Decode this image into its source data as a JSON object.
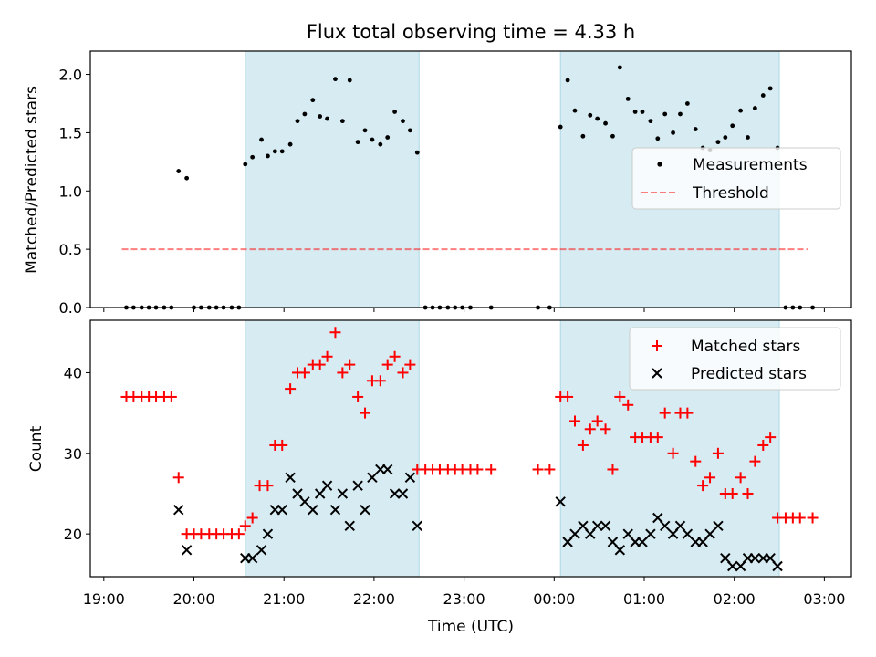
{
  "figure": {
    "title": "Flux total observing time = 4.33 h"
  },
  "colors": {
    "shade": "#add8e6",
    "measurement": "#000000",
    "threshold": "#ff0000",
    "matched": "#ff0000",
    "predicted": "#000000"
  },
  "chart_data": [
    {
      "type": "scatter",
      "panel": "top",
      "title": "Flux total observing time = 4.33 h",
      "xlabel": "",
      "ylabel": "Matched/Predicted stars",
      "x_unit": "hours since 19:00 UTC",
      "xlim": [
        -0.15,
        8.3
      ],
      "ylim": [
        0,
        2.2
      ],
      "yticks": [
        "0.0",
        "0.5",
        "1.0",
        "1.5",
        "2.0"
      ],
      "ytick_values": [
        0,
        0.5,
        1.0,
        1.5,
        2.0
      ],
      "grid": false,
      "legend_position": "center-right",
      "shaded_intervals": [
        [
          1.57,
          3.5
        ],
        [
          5.07,
          7.5
        ]
      ],
      "threshold": {
        "name": "Threshold",
        "value": 0.5,
        "x_range": [
          0.2,
          7.82
        ]
      },
      "series": [
        {
          "name": "Measurements",
          "points": [
            [
              0.25,
              0
            ],
            [
              0.33,
              0
            ],
            [
              0.42,
              0
            ],
            [
              0.5,
              0
            ],
            [
              0.58,
              0
            ],
            [
              0.67,
              0
            ],
            [
              0.75,
              0
            ],
            [
              0.83,
              1.17
            ],
            [
              0.92,
              1.11
            ],
            [
              1.0,
              0
            ],
            [
              1.08,
              0
            ],
            [
              1.17,
              0
            ],
            [
              1.25,
              0
            ],
            [
              1.33,
              0
            ],
            [
              1.42,
              0
            ],
            [
              1.5,
              0
            ],
            [
              1.57,
              1.23
            ],
            [
              1.65,
              1.29
            ],
            [
              1.75,
              1.44
            ],
            [
              1.82,
              1.3
            ],
            [
              1.9,
              1.34
            ],
            [
              1.98,
              1.34
            ],
            [
              2.07,
              1.4
            ],
            [
              2.15,
              1.6
            ],
            [
              2.23,
              1.66
            ],
            [
              2.32,
              1.78
            ],
            [
              2.4,
              1.64
            ],
            [
              2.48,
              1.62
            ],
            [
              2.57,
              1.96
            ],
            [
              2.65,
              1.6
            ],
            [
              2.73,
              1.95
            ],
            [
              2.82,
              1.42
            ],
            [
              2.9,
              1.52
            ],
            [
              2.98,
              1.44
            ],
            [
              3.07,
              1.4
            ],
            [
              3.15,
              1.46
            ],
            [
              3.23,
              1.68
            ],
            [
              3.32,
              1.6
            ],
            [
              3.4,
              1.52
            ],
            [
              3.48,
              1.33
            ],
            [
              3.57,
              0
            ],
            [
              3.65,
              0
            ],
            [
              3.73,
              0
            ],
            [
              3.82,
              0
            ],
            [
              3.9,
              0
            ],
            [
              3.98,
              0
            ],
            [
              4.07,
              0
            ],
            [
              4.3,
              0
            ],
            [
              4.82,
              0
            ],
            [
              4.95,
              0
            ],
            [
              5.07,
              1.55
            ],
            [
              5.15,
              1.95
            ],
            [
              5.23,
              1.69
            ],
            [
              5.32,
              1.47
            ],
            [
              5.4,
              1.65
            ],
            [
              5.48,
              1.62
            ],
            [
              5.57,
              1.58
            ],
            [
              5.65,
              1.47
            ],
            [
              5.73,
              2.06
            ],
            [
              5.82,
              1.79
            ],
            [
              5.9,
              1.68
            ],
            [
              5.98,
              1.68
            ],
            [
              6.07,
              1.6
            ],
            [
              6.15,
              1.45
            ],
            [
              6.23,
              1.66
            ],
            [
              6.32,
              1.5
            ],
            [
              6.4,
              1.66
            ],
            [
              6.48,
              1.75
            ],
            [
              6.57,
              1.53
            ],
            [
              6.65,
              1.37
            ],
            [
              6.73,
              1.35
            ],
            [
              6.82,
              1.42
            ],
            [
              6.9,
              1.46
            ],
            [
              6.98,
              1.56
            ],
            [
              7.07,
              1.69
            ],
            [
              7.15,
              1.46
            ],
            [
              7.23,
              1.71
            ],
            [
              7.32,
              1.82
            ],
            [
              7.4,
              1.88
            ],
            [
              7.48,
              1.37
            ],
            [
              7.57,
              0
            ],
            [
              7.65,
              0
            ],
            [
              7.73,
              0
            ],
            [
              7.87,
              0
            ]
          ]
        },
        {
          "name": "Threshold",
          "line_style": "dashed"
        }
      ]
    },
    {
      "type": "scatter",
      "panel": "bottom",
      "xlabel": "Time (UTC)",
      "ylabel": "Count",
      "x_unit": "hours since 19:00 UTC",
      "xlim": [
        -0.15,
        8.3
      ],
      "ylim": [
        14.7,
        46.5
      ],
      "xticks": [
        "19:00",
        "20:00",
        "21:00",
        "22:00",
        "23:00",
        "00:00",
        "01:00",
        "02:00",
        "03:00"
      ],
      "xtick_values": [
        0,
        1,
        2,
        3,
        4,
        5,
        6,
        7,
        8
      ],
      "yticks": [
        "20",
        "30",
        "40"
      ],
      "ytick_values": [
        20,
        30,
        40
      ],
      "grid": false,
      "legend_position": "top-right",
      "shaded_intervals": [
        [
          1.57,
          3.5
        ],
        [
          5.07,
          7.5
        ]
      ],
      "series": [
        {
          "name": "Matched stars",
          "marker": "plus",
          "points": [
            [
              0.25,
              37
            ],
            [
              0.33,
              37
            ],
            [
              0.42,
              37
            ],
            [
              0.5,
              37
            ],
            [
              0.58,
              37
            ],
            [
              0.67,
              37
            ],
            [
              0.75,
              37
            ],
            [
              0.83,
              27
            ],
            [
              0.92,
              20
            ],
            [
              1.0,
              20
            ],
            [
              1.08,
              20
            ],
            [
              1.17,
              20
            ],
            [
              1.25,
              20
            ],
            [
              1.33,
              20
            ],
            [
              1.42,
              20
            ],
            [
              1.5,
              20
            ],
            [
              1.57,
              21
            ],
            [
              1.65,
              22
            ],
            [
              1.73,
              26
            ],
            [
              1.82,
              26
            ],
            [
              1.9,
              31
            ],
            [
              1.98,
              31
            ],
            [
              2.07,
              38
            ],
            [
              2.15,
              40
            ],
            [
              2.23,
              40
            ],
            [
              2.32,
              41
            ],
            [
              2.4,
              41
            ],
            [
              2.48,
              42
            ],
            [
              2.57,
              45
            ],
            [
              2.65,
              40
            ],
            [
              2.73,
              41
            ],
            [
              2.82,
              37
            ],
            [
              2.9,
              35
            ],
            [
              2.98,
              39
            ],
            [
              3.07,
              39
            ],
            [
              3.15,
              41
            ],
            [
              3.23,
              42
            ],
            [
              3.32,
              40
            ],
            [
              3.4,
              41
            ],
            [
              3.48,
              28
            ],
            [
              3.57,
              28
            ],
            [
              3.65,
              28
            ],
            [
              3.73,
              28
            ],
            [
              3.82,
              28
            ],
            [
              3.9,
              28
            ],
            [
              3.98,
              28
            ],
            [
              4.07,
              28
            ],
            [
              4.15,
              28
            ],
            [
              4.3,
              28
            ],
            [
              4.82,
              28
            ],
            [
              4.95,
              28
            ],
            [
              5.07,
              37
            ],
            [
              5.15,
              37
            ],
            [
              5.23,
              34
            ],
            [
              5.32,
              31
            ],
            [
              5.4,
              33
            ],
            [
              5.48,
              34
            ],
            [
              5.57,
              33
            ],
            [
              5.65,
              28
            ],
            [
              5.73,
              37
            ],
            [
              5.82,
              36
            ],
            [
              5.9,
              32
            ],
            [
              5.98,
              32
            ],
            [
              6.07,
              32
            ],
            [
              6.15,
              32
            ],
            [
              6.23,
              35
            ],
            [
              6.32,
              30
            ],
            [
              6.4,
              35
            ],
            [
              6.48,
              35
            ],
            [
              6.57,
              29
            ],
            [
              6.65,
              26
            ],
            [
              6.73,
              27
            ],
            [
              6.82,
              30
            ],
            [
              6.9,
              25
            ],
            [
              6.98,
              25
            ],
            [
              7.07,
              27
            ],
            [
              7.15,
              25
            ],
            [
              7.23,
              29
            ],
            [
              7.32,
              31
            ],
            [
              7.4,
              32
            ],
            [
              7.48,
              22
            ],
            [
              7.57,
              22
            ],
            [
              7.65,
              22
            ],
            [
              7.73,
              22
            ],
            [
              7.87,
              22
            ]
          ]
        },
        {
          "name": "Predicted stars",
          "marker": "x",
          "points": [
            [
              0.83,
              23
            ],
            [
              0.92,
              18
            ],
            [
              1.57,
              17
            ],
            [
              1.65,
              17
            ],
            [
              1.75,
              18
            ],
            [
              1.82,
              20
            ],
            [
              1.9,
              23
            ],
            [
              1.98,
              23
            ],
            [
              2.07,
              27
            ],
            [
              2.15,
              25
            ],
            [
              2.23,
              24
            ],
            [
              2.32,
              23
            ],
            [
              2.4,
              25
            ],
            [
              2.48,
              26
            ],
            [
              2.57,
              23
            ],
            [
              2.65,
              25
            ],
            [
              2.73,
              21
            ],
            [
              2.82,
              26
            ],
            [
              2.9,
              23
            ],
            [
              2.98,
              27
            ],
            [
              3.07,
              28
            ],
            [
              3.15,
              28
            ],
            [
              3.23,
              25
            ],
            [
              3.32,
              25
            ],
            [
              3.4,
              27
            ],
            [
              3.48,
              21
            ],
            [
              5.07,
              24
            ],
            [
              5.15,
              19
            ],
            [
              5.23,
              20
            ],
            [
              5.32,
              21
            ],
            [
              5.4,
              20
            ],
            [
              5.48,
              21
            ],
            [
              5.57,
              21
            ],
            [
              5.65,
              19
            ],
            [
              5.73,
              18
            ],
            [
              5.82,
              20
            ],
            [
              5.9,
              19
            ],
            [
              5.98,
              19
            ],
            [
              6.07,
              20
            ],
            [
              6.15,
              22
            ],
            [
              6.23,
              21
            ],
            [
              6.32,
              20
            ],
            [
              6.4,
              21
            ],
            [
              6.48,
              20
            ],
            [
              6.57,
              19
            ],
            [
              6.65,
              19
            ],
            [
              6.73,
              20
            ],
            [
              6.82,
              21
            ],
            [
              6.9,
              17
            ],
            [
              6.98,
              16
            ],
            [
              7.07,
              16
            ],
            [
              7.15,
              17
            ],
            [
              7.23,
              17
            ],
            [
              7.32,
              17
            ],
            [
              7.4,
              17
            ],
            [
              7.48,
              16
            ]
          ]
        }
      ]
    }
  ]
}
